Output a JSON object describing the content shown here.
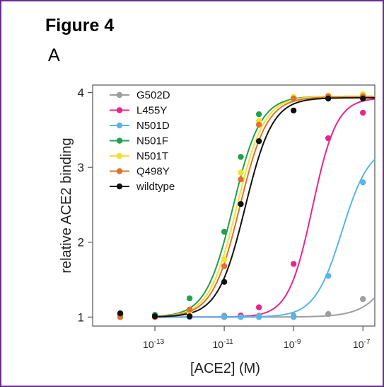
{
  "figure_title": "Figure 4",
  "panel_label": "A",
  "chart_data": {
    "type": "scatter",
    "title": "",
    "xlabel": "[ACE2] (M)",
    "ylabel": "relative ACE2 binding",
    "xscale": "log",
    "xlim": [
      1.6e-15,
      2.2e-07
    ],
    "ylim": [
      0.88,
      4.1
    ],
    "x_ticks": [
      1e-13,
      1e-11,
      1e-09,
      1e-07
    ],
    "x_tick_labels": [
      {
        "base": "10",
        "exp": "-13"
      },
      {
        "base": "10",
        "exp": "-11"
      },
      {
        "base": "10",
        "exp": "-9"
      },
      {
        "base": "10",
        "exp": "-7"
      }
    ],
    "y_ticks": [
      1,
      2,
      3,
      4
    ],
    "y_tick_labels": [
      "1",
      "2",
      "3",
      "4"
    ],
    "legend_position": "top-left",
    "grid": false,
    "x": [
      1e-14,
      1e-13,
      1e-12,
      1e-11,
      3e-11,
      1e-10,
      1e-09,
      1e-08,
      1e-07
    ],
    "series": [
      {
        "name": "G502D",
        "color": "#9e9e9e",
        "values": [
          1.03,
          1.02,
          1.02,
          1.02,
          1.02,
          1.02,
          1.02,
          1.04,
          1.24
        ],
        "fit": {
          "bottom": 1.0,
          "top": 4.0,
          "ec50": 3e-06,
          "hill": 0.9
        }
      },
      {
        "name": "L455Y",
        "color": "#e8268a",
        "values": [
          1.0,
          1.0,
          1.0,
          1.0,
          1.02,
          1.13,
          1.71,
          3.39,
          3.73
        ],
        "fit": {
          "bottom": 1.0,
          "top": 3.93,
          "ec50": 3.5e-09,
          "hill": 1.25
        }
      },
      {
        "name": "N501D",
        "color": "#58b6e6",
        "values": [
          1.0,
          1.0,
          1.0,
          1.0,
          1.0,
          1.0,
          1.0,
          1.55,
          2.8
        ],
        "fit": {
          "bottom": 1.0,
          "top": 3.3,
          "ec50": 2.5e-08,
          "hill": 1.1
        }
      },
      {
        "name": "N501F",
        "color": "#21a04d",
        "values": [
          1.04,
          1.03,
          1.25,
          2.14,
          3.14,
          3.71,
          3.93,
          3.93,
          3.95
        ],
        "fit": {
          "bottom": 1.0,
          "top": 3.95,
          "ec50": 1.8e-11,
          "hill": 1.1
        }
      },
      {
        "name": "N501T",
        "color": "#f2e12e",
        "values": [
          1.0,
          1.0,
          1.05,
          1.77,
          2.93,
          3.62,
          3.94,
          3.96,
          3.98
        ],
        "fit": {
          "bottom": 1.0,
          "top": 3.95,
          "ec50": 2.3e-11,
          "hill": 1.1
        }
      },
      {
        "name": "Q498Y",
        "color": "#e0722e",
        "values": [
          1.0,
          1.0,
          1.1,
          1.68,
          2.84,
          3.57,
          3.92,
          3.95,
          3.95
        ],
        "fit": {
          "bottom": 1.0,
          "top": 3.94,
          "ec50": 2.8e-11,
          "hill": 1.1
        }
      },
      {
        "name": "wildtype",
        "color": "#111111",
        "values": [
          1.05,
          1.01,
          1.01,
          1.47,
          2.51,
          3.35,
          3.76,
          3.92,
          3.92
        ],
        "fit": {
          "bottom": 1.0,
          "top": 3.93,
          "ec50": 4e-11,
          "hill": 1.1
        }
      }
    ]
  }
}
